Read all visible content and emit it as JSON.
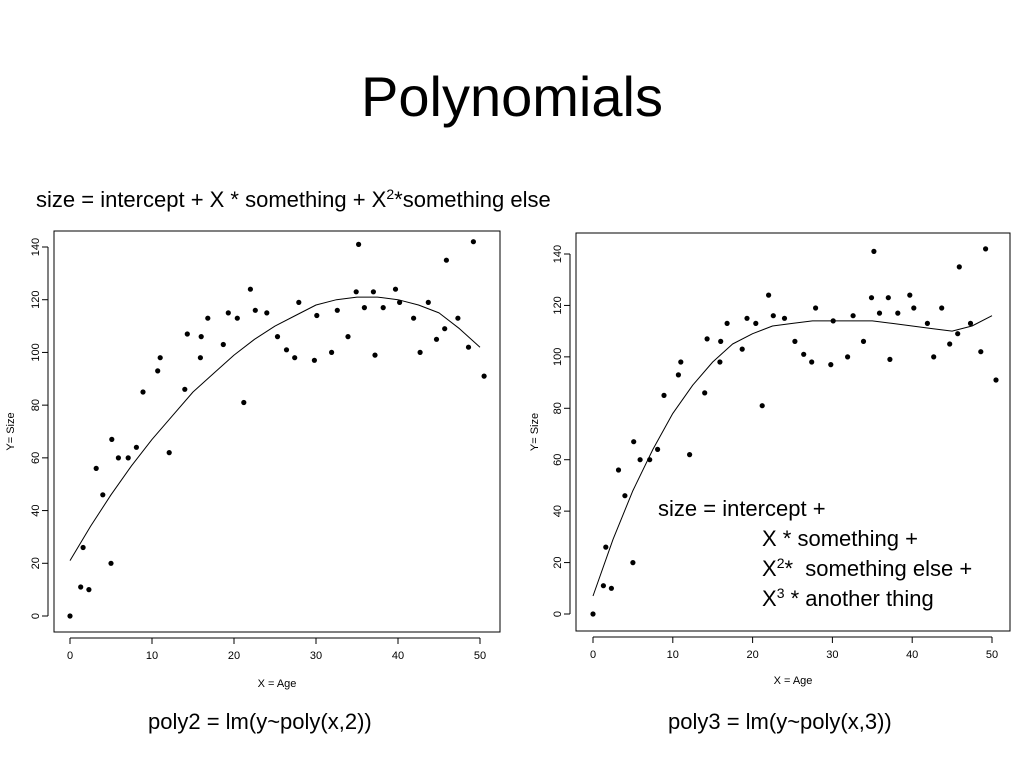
{
  "slide": {
    "title": "Polynomials",
    "formula_main": {
      "prefix": "size = intercept + X * something + X",
      "exp": "2",
      "suffix": "*something else"
    },
    "formula_box": {
      "line1": "size = intercept +",
      "line2": "X * something +",
      "line3_base": "X",
      "line3_exp": "2",
      "line3_rest": "*  something else +",
      "line4_base": "X",
      "line4_exp": "3",
      "line4_rest": " * another thing"
    },
    "caption_left": "poly2 = lm(y~poly(x,2))",
    "caption_right": "poly3 = lm(y~poly(x,3))"
  },
  "chart_data": [
    {
      "type": "scatter",
      "xlabel": "X = Age",
      "ylabel": "Y= Size",
      "xlim": [
        0,
        50
      ],
      "ylim": [
        0,
        140
      ],
      "xticks": [
        "0",
        "10",
        "20",
        "30",
        "40",
        "50"
      ],
      "yticks": [
        "0",
        "20",
        "40",
        "60",
        "80",
        "100",
        "120",
        "140"
      ],
      "grid": false,
      "points": {
        "x": [
          0,
          1.3,
          1.6,
          2.3,
          3.2,
          4.0,
          5.0,
          5.1,
          5.9,
          7.1,
          8.1,
          8.9,
          10.7,
          11.0,
          12.1,
          14.0,
          14.3,
          15.9,
          16.0,
          16.8,
          18.7,
          19.3,
          20.4,
          21.2,
          22.0,
          22.6,
          24.0,
          25.3,
          26.4,
          27.4,
          27.9,
          29.8,
          30.1,
          31.9,
          32.6,
          33.9,
          34.9,
          35.2,
          35.9,
          37.0,
          37.2,
          38.2,
          39.7,
          40.2,
          41.9,
          42.7,
          43.7,
          44.7,
          45.7,
          45.9,
          47.3,
          48.6,
          49.2,
          50.5
        ],
        "y": [
          0,
          11,
          26,
          10,
          56,
          46,
          20,
          67,
          60,
          60,
          64,
          85,
          93,
          98,
          62,
          86,
          107,
          98,
          106,
          113,
          103,
          115,
          113,
          81,
          124,
          116,
          115,
          106,
          101,
          98,
          119,
          97,
          114,
          100,
          116,
          106,
          123,
          141,
          117,
          123,
          99,
          117,
          124,
          119,
          113,
          100,
          119,
          105,
          109,
          135,
          113,
          102,
          142,
          91
        ]
      },
      "fit": {
        "model": "poly2 = lm(y~poly(x,2))",
        "x": [
          0,
          2.5,
          5,
          7.5,
          10,
          12.5,
          15,
          17.5,
          20,
          22.5,
          25,
          27.5,
          30,
          32.5,
          35,
          37.5,
          40,
          42.5,
          45,
          47.5,
          50
        ],
        "y": [
          21,
          34,
          46,
          57,
          67,
          76,
          85,
          92,
          99,
          105,
          110,
          114,
          118,
          120,
          121,
          121,
          120,
          118,
          115,
          109,
          102
        ]
      }
    },
    {
      "type": "scatter",
      "xlabel": "X = Age",
      "ylabel": "Y= Size",
      "xlim": [
        0,
        50
      ],
      "ylim": [
        0,
        140
      ],
      "xticks": [
        "0",
        "10",
        "20",
        "30",
        "40",
        "50"
      ],
      "yticks": [
        "0",
        "20",
        "40",
        "60",
        "80",
        "100",
        "120",
        "140"
      ],
      "grid": false,
      "points": {
        "x": [
          0,
          1.3,
          1.6,
          2.3,
          3.2,
          4.0,
          5.0,
          5.1,
          5.9,
          7.1,
          8.1,
          8.9,
          10.7,
          11.0,
          12.1,
          14.0,
          14.3,
          15.9,
          16.0,
          16.8,
          18.7,
          19.3,
          20.4,
          21.2,
          22.0,
          22.6,
          24.0,
          25.3,
          26.4,
          27.4,
          27.9,
          29.8,
          30.1,
          31.9,
          32.6,
          33.9,
          34.9,
          35.2,
          35.9,
          37.0,
          37.2,
          38.2,
          39.7,
          40.2,
          41.9,
          42.7,
          43.7,
          44.7,
          45.7,
          45.9,
          47.3,
          48.6,
          49.2,
          50.5
        ],
        "y": [
          0,
          11,
          26,
          10,
          56,
          46,
          20,
          67,
          60,
          60,
          64,
          85,
          93,
          98,
          62,
          86,
          107,
          98,
          106,
          113,
          103,
          115,
          113,
          81,
          124,
          116,
          115,
          106,
          101,
          98,
          119,
          97,
          114,
          100,
          116,
          106,
          123,
          141,
          117,
          123,
          99,
          117,
          124,
          119,
          113,
          100,
          119,
          105,
          109,
          135,
          113,
          102,
          142,
          91
        ]
      },
      "fit": {
        "model": "poly3 = lm(y~poly(x,3))",
        "x": [
          0,
          2.5,
          5,
          7.5,
          10,
          12.5,
          15,
          17.5,
          20,
          22.5,
          25,
          27.5,
          30,
          32.5,
          35,
          37.5,
          40,
          42.5,
          45,
          47.5,
          50
        ],
        "y": [
          7,
          29,
          48,
          64,
          78,
          89,
          98,
          105,
          109,
          112,
          113,
          114,
          114,
          114,
          114,
          113,
          112,
          111,
          110,
          112,
          116
        ]
      }
    }
  ]
}
